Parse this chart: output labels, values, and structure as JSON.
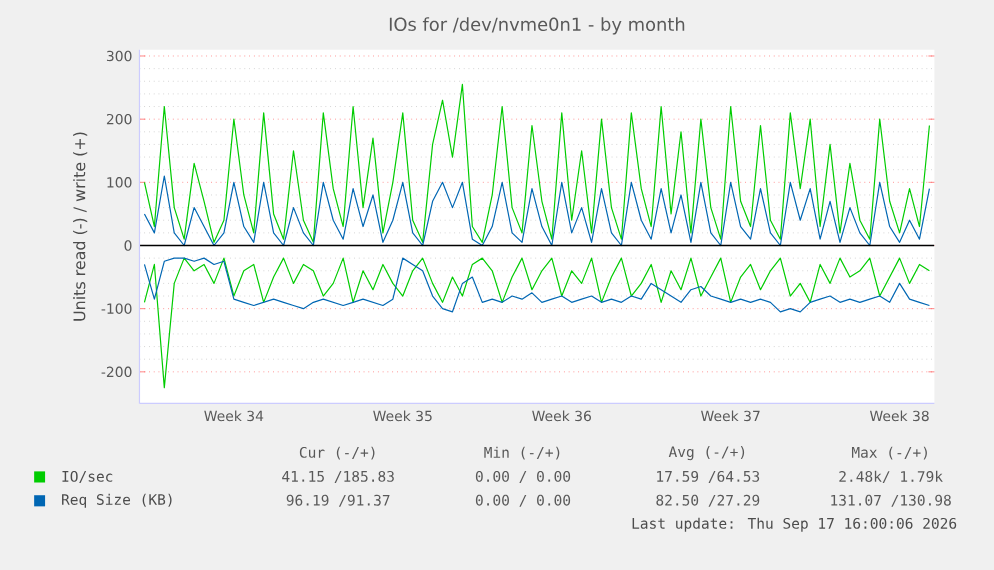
{
  "chart_data": {
    "type": "line",
    "title": "IOs for /dev/nvme0n1 - by month",
    "ylabel": "Units read (-) / write (+)",
    "categories": [
      null,
      null,
      null,
      null,
      null,
      null,
      null,
      null,
      null,
      "Week 34",
      null,
      null,
      null,
      null,
      null,
      null,
      null,
      null,
      null,
      null,
      null,
      null,
      null,
      null,
      null,
      null,
      "Week 35",
      null,
      null,
      null,
      null,
      null,
      null,
      null,
      null,
      null,
      null,
      null,
      null,
      null,
      null,
      null,
      "Week 36",
      null,
      null,
      null,
      null,
      null,
      null,
      null,
      null,
      null,
      null,
      null,
      null,
      null,
      null,
      null,
      null,
      "Week 37",
      null,
      null,
      null,
      null,
      null,
      null,
      null,
      null,
      null,
      null,
      null,
      null,
      null,
      null,
      null,
      null,
      "Week 38",
      null,
      null,
      null
    ],
    "series": [
      {
        "name": "IO/sec",
        "color": "#00cc00",
        "values": [
          100,
          30,
          220,
          60,
          10,
          130,
          70,
          5,
          40,
          200,
          80,
          20,
          210,
          50,
          10,
          150,
          40,
          5,
          210,
          90,
          30,
          220,
          60,
          170,
          20,
          100,
          210,
          40,
          5,
          160,
          230,
          140,
          255,
          30,
          5,
          80,
          220,
          60,
          20,
          190,
          70,
          10,
          210,
          40,
          150,
          20,
          200,
          60,
          10,
          210,
          90,
          30,
          220,
          50,
          180,
          20,
          200,
          60,
          10,
          220,
          70,
          30,
          190,
          40,
          10,
          210,
          90,
          200,
          30,
          160,
          20,
          130,
          40,
          10,
          200,
          70,
          20,
          90,
          30,
          190
        ]
      },
      {
        "color": "#00cc00",
        "values": [
          -90,
          -30,
          -225,
          -60,
          -20,
          -40,
          -30,
          -60,
          -20,
          -80,
          -40,
          -30,
          -90,
          -50,
          -20,
          -60,
          -30,
          -40,
          -80,
          -60,
          -20,
          -90,
          -40,
          -70,
          -30,
          -60,
          -80,
          -40,
          -20,
          -60,
          -90,
          -50,
          -80,
          -30,
          -20,
          -40,
          -90,
          -50,
          -20,
          -70,
          -40,
          -20,
          -80,
          -40,
          -60,
          -20,
          -90,
          -50,
          -20,
          -80,
          -60,
          -30,
          -90,
          -40,
          -70,
          -20,
          -80,
          -50,
          -20,
          -90,
          -50,
          -30,
          -70,
          -40,
          -20,
          -80,
          -60,
          -90,
          -30,
          -60,
          -20,
          -50,
          -40,
          -20,
          -80,
          -50,
          -20,
          -60,
          -30,
          -40
        ]
      },
      {
        "name": "Req Size (KB)",
        "color": "#0066b3",
        "values": [
          50,
          20,
          110,
          20,
          0,
          60,
          30,
          0,
          20,
          100,
          30,
          5,
          100,
          20,
          0,
          60,
          20,
          0,
          100,
          40,
          10,
          90,
          30,
          80,
          5,
          40,
          100,
          20,
          0,
          70,
          100,
          60,
          100,
          10,
          0,
          30,
          100,
          20,
          5,
          90,
          30,
          0,
          100,
          20,
          60,
          5,
          90,
          20,
          0,
          100,
          40,
          10,
          90,
          20,
          80,
          5,
          100,
          20,
          0,
          100,
          30,
          10,
          90,
          20,
          0,
          100,
          40,
          90,
          10,
          70,
          5,
          60,
          20,
          0,
          100,
          30,
          5,
          40,
          10,
          90
        ]
      },
      {
        "color": "#0066b3",
        "values": [
          -30,
          -85,
          -25,
          -20,
          -20,
          -25,
          -20,
          -30,
          -25,
          -85,
          -90,
          -95,
          -90,
          -85,
          -90,
          -95,
          -100,
          -90,
          -85,
          -90,
          -95,
          -90,
          -85,
          -90,
          -95,
          -85,
          -20,
          -30,
          -40,
          -80,
          -100,
          -105,
          -60,
          -50,
          -90,
          -85,
          -90,
          -80,
          -85,
          -75,
          -90,
          -85,
          -80,
          -90,
          -85,
          -80,
          -90,
          -85,
          -90,
          -80,
          -85,
          -60,
          -70,
          -80,
          -90,
          -70,
          -65,
          -80,
          -85,
          -90,
          -85,
          -90,
          -85,
          -90,
          -105,
          -100,
          -105,
          -90,
          -85,
          -80,
          -90,
          -85,
          -90,
          -85,
          -80,
          -90,
          -60,
          -85,
          -90,
          -95
        ]
      }
    ],
    "ylim": [
      -250,
      310
    ],
    "yticks": [
      -200,
      -100,
      0,
      100,
      200,
      300
    ],
    "ref_lines": [
      {
        "axis": "y",
        "value": 0,
        "color": "#000000"
      }
    ],
    "grid": "y",
    "legend": "bottom",
    "marker": "none",
    "line_style": "solid",
    "annotations": [
      "Cur (-/+)",
      "Min (-/+)",
      "Avg (-/+)",
      "Max (-/+)",
      "41.15 /185.83",
      "0.00 / 0.00",
      "17.59 /64.53",
      "2.48k/ 1.79k",
      "96.19 /91.37",
      "0.00 / 0.00",
      "82.50 /27.29",
      "131.07 /130.98",
      "Last update: Thu Sep 17 16:00:06 2026"
    ]
  }
}
